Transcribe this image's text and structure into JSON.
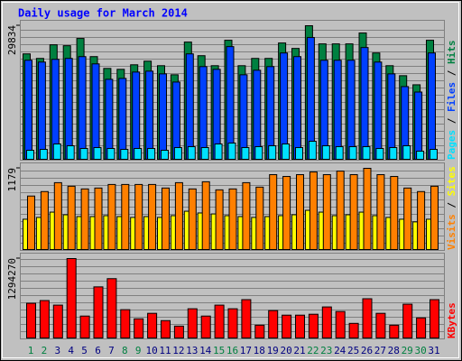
{
  "chart_data": [
    {
      "type": "bar",
      "title": "Daily usage for March 2014",
      "ylim": [
        0,
        29834
      ],
      "yticks": [
        29834
      ],
      "series": [
        {
          "name": "Hits",
          "color": "#008040",
          "values": [
            23587,
            22579,
            25603,
            25402,
            27014,
            22982,
            20362,
            20160,
            21168,
            21974,
            20966,
            18950,
            26208,
            23184,
            20966,
            26611,
            20966,
            22579,
            22579,
            26006,
            24797,
            29834,
            25805,
            25805,
            25805,
            28224,
            23789,
            20966,
            18749,
            16733,
            26611
          ]
        },
        {
          "name": "Files",
          "color": "#0040ff",
          "values": [
            22176,
            21773,
            22378,
            22579,
            22982,
            21370,
            17942,
            18144,
            19555,
            19757,
            19152,
            17338,
            23587,
            20765,
            20160,
            25200,
            18950,
            19958,
            20765,
            23789,
            22982,
            27216,
            22176,
            22176,
            22176,
            24998,
            21773,
            19152,
            16330,
            15120,
            23789
          ]
        },
        {
          "name": "Pages",
          "color": "#00e0ff",
          "values": [
            2200,
            2400,
            3600,
            3200,
            2600,
            2800,
            2600,
            2400,
            2600,
            2600,
            2200,
            2800,
            3000,
            2800,
            3600,
            3800,
            2800,
            3000,
            3200,
            3600,
            2800,
            4200,
            3200,
            3000,
            3000,
            3000,
            2600,
            2800,
            3200,
            2000,
            2400
          ]
        }
      ]
    },
    {
      "type": "bar",
      "ylim": [
        0,
        1179
      ],
      "yticks": [
        1179
      ],
      "series": [
        {
          "name": "Sites",
          "color": "#ffff00",
          "values": [
            448,
            474,
            550,
            512,
            486,
            486,
            499,
            486,
            474,
            486,
            474,
            499,
            563,
            538,
            524,
            499,
            486,
            474,
            486,
            499,
            512,
            576,
            550,
            499,
            512,
            550,
            499,
            474,
            448,
            410,
            448
          ]
        },
        {
          "name": "Visits",
          "color": "#ff8000",
          "values": [
            781,
            845,
            973,
            922,
            883,
            896,
            947,
            947,
            947,
            947,
            896,
            973,
            883,
            986,
            870,
            883,
            973,
            909,
            1088,
            1062,
            1088,
            1126,
            1088,
            1139,
            1088,
            1179,
            1088,
            1062,
            896,
            845,
            922
          ]
        }
      ]
    },
    {
      "type": "bar",
      "ylim": [
        0,
        1294270
      ],
      "yticks": [
        1294270
      ],
      "categories": [
        "1",
        "2",
        "3",
        "4",
        "5",
        "6",
        "7",
        "8",
        "9",
        "10",
        "11",
        "12",
        "13",
        "14",
        "15",
        "16",
        "17",
        "18",
        "19",
        "20",
        "21",
        "22",
        "23",
        "24",
        "25",
        "26",
        "27",
        "28",
        "29",
        "30",
        "31"
      ],
      "category_colors": [
        "#008040",
        "#008040",
        "#000080",
        "#000080",
        "#000080",
        "#000080",
        "#000080",
        "#008040",
        "#008040",
        "#000080",
        "#000080",
        "#000080",
        "#000080",
        "#000080",
        "#008040",
        "#008040",
        "#000080",
        "#000080",
        "#000080",
        "#000080",
        "#000080",
        "#008040",
        "#008040",
        "#000080",
        "#000080",
        "#000080",
        "#000080",
        "#000080",
        "#008040",
        "#008040",
        "#000080"
      ],
      "series": [
        {
          "name": "KBytes",
          "color": "#ff0000",
          "values": [
            573600,
            617700,
            544200,
            1294270,
            367700,
            838300,
            970700,
            470700,
            323600,
            411800,
            294200,
            205900,
            485400,
            367700,
            544200,
            485400,
            632400,
            220600,
            455900,
            382400,
            382400,
            397100,
            514800,
            441200,
            250000,
            647100,
            411800,
            220600,
            558900,
            338300,
            632400
          ]
        }
      ]
    }
  ]
}
